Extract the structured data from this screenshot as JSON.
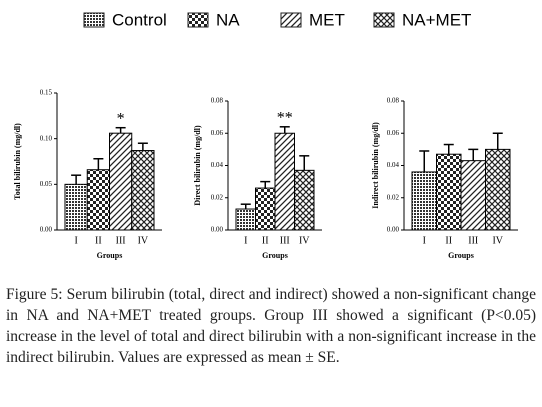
{
  "legend": {
    "entries": [
      {
        "name": "Control",
        "pattern": "dots"
      },
      {
        "name": "NA",
        "pattern": "checker"
      },
      {
        "name": "MET",
        "pattern": "diagonal"
      },
      {
        "name": "NA+MET",
        "pattern": "crosshatch"
      }
    ]
  },
  "chart_data": [
    {
      "type": "bar",
      "ylabel": "Total bilirubin (mg/dl)",
      "xlabel": "Groups",
      "categories": [
        "I",
        "II",
        "III",
        "IV"
      ],
      "values": [
        0.05,
        0.066,
        0.106,
        0.087
      ],
      "errors": [
        0.01,
        0.012,
        0.006,
        0.008
      ],
      "annotation": "*",
      "ylim": [
        0,
        0.15
      ],
      "yticks": [
        {
          "value": 0,
          "label": "0.00"
        },
        {
          "value": 0.05,
          "label": "0.05"
        },
        {
          "value": 0.1,
          "label": "0.10"
        },
        {
          "value": 0.15,
          "label": "0.15"
        }
      ]
    },
    {
      "type": "bar",
      "ylabel": "Direct bilirubin (mg/dl)",
      "xlabel": "Groups",
      "categories": [
        "I",
        "II",
        "III",
        "IV"
      ],
      "values": [
        0.013,
        0.026,
        0.06,
        0.037
      ],
      "errors": [
        0.003,
        0.004,
        0.004,
        0.009
      ],
      "annotation": "**",
      "ylim": [
        0,
        0.08
      ],
      "yticks": [
        {
          "value": 0,
          "label": "0.00"
        },
        {
          "value": 0.02,
          "label": "0.02"
        },
        {
          "value": 0.04,
          "label": "0.04"
        },
        {
          "value": 0.06,
          "label": "0.06"
        },
        {
          "value": 0.08,
          "label": "0.08"
        }
      ]
    },
    {
      "type": "bar",
      "ylabel": "Indirect bilirubin (mg/dl)",
      "xlabel": "Groups",
      "categories": [
        "I",
        "II",
        "III",
        "IV"
      ],
      "values": [
        0.036,
        0.047,
        0.043,
        0.05
      ],
      "errors": [
        0.013,
        0.006,
        0.007,
        0.01
      ],
      "ylim": [
        0,
        0.08
      ],
      "yticks": [
        {
          "value": 0,
          "label": "0.00"
        },
        {
          "value": 0.02,
          "label": "0.02"
        },
        {
          "value": 0.04,
          "label": "0.04"
        },
        {
          "value": 0.06,
          "label": "0.06"
        },
        {
          "value": 0.08,
          "label": "0.08"
        }
      ]
    }
  ],
  "caption": "Figure 5: Serum bilirubin (total, direct and indirect) showed a non-significant change in NA and NA+MET treated groups. Group III showed a significant (P<0.05) increase in the level of total and direct bilirubin with a non-significant increase in the indirect bilirubin. Values are expressed as mean ± SE."
}
